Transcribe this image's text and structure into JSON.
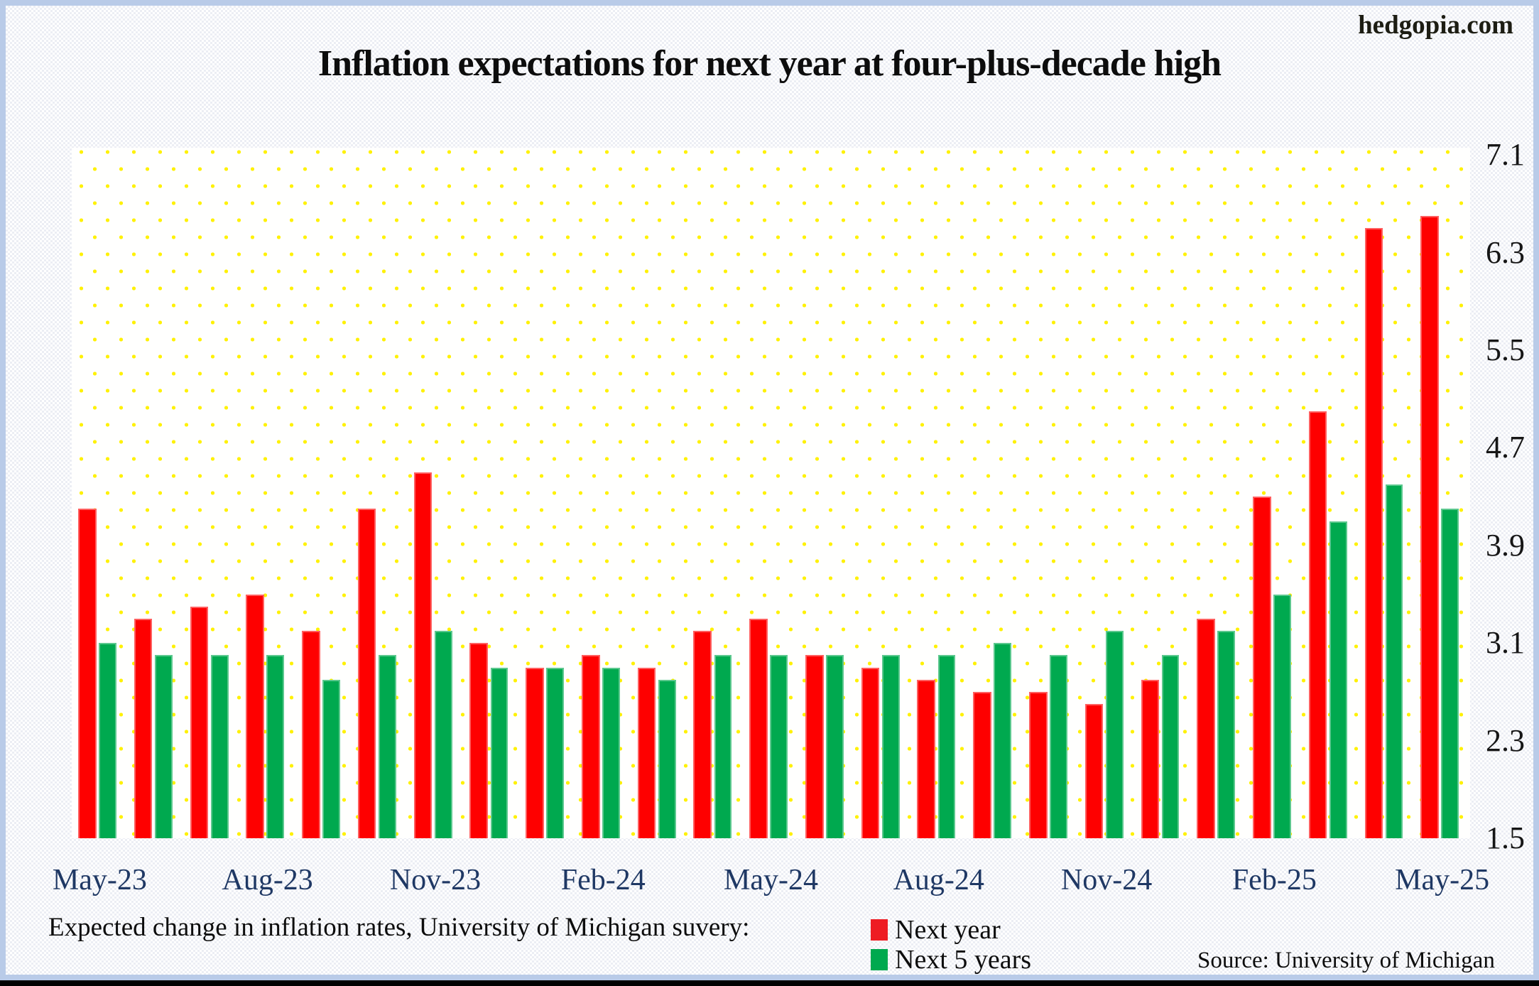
{
  "watermark": "hedgopia.com",
  "footer_note": "Expected change in inflation rates, University of Michigan suvery:",
  "source_note": "Source: University of Michigan",
  "colors": {
    "next_year": "#fe0000",
    "next_5_years": "#00a94f",
    "x_label": "#1f3864",
    "dot_grid": "#fff100",
    "frame": "#b9cbe8"
  },
  "chart_data": {
    "type": "bar",
    "title": "Inflation expectations for next year at four-plus-decade high",
    "categories": [
      "May-23",
      "Jun-23",
      "Jul-23",
      "Aug-23",
      "Sep-23",
      "Oct-23",
      "Nov-23",
      "Dec-23",
      "Jan-24",
      "Feb-24",
      "Mar-24",
      "Apr-24",
      "May-24",
      "Jun-24",
      "Jul-24",
      "Aug-24",
      "Sep-24",
      "Oct-24",
      "Nov-24",
      "Dec-24",
      "Jan-25",
      "Feb-25",
      "Mar-25",
      "Apr-25",
      "May-25"
    ],
    "series": [
      {
        "name": "Next year",
        "color": "#fe0000",
        "values": [
          4.2,
          3.3,
          3.4,
          3.5,
          3.2,
          4.2,
          4.5,
          3.1,
          2.9,
          3.0,
          2.9,
          3.2,
          3.3,
          3.0,
          2.9,
          2.8,
          2.7,
          2.7,
          2.6,
          2.8,
          3.3,
          4.3,
          5.0,
          6.5,
          6.6
        ]
      },
      {
        "name": "Next 5 years",
        "color": "#00a94f",
        "values": [
          3.1,
          3.0,
          3.0,
          3.0,
          2.8,
          3.0,
          3.2,
          2.9,
          2.9,
          2.9,
          2.8,
          3.0,
          3.0,
          3.0,
          3.0,
          3.0,
          3.1,
          3.0,
          3.2,
          3.0,
          3.2,
          3.5,
          4.1,
          4.4,
          4.2
        ]
      }
    ],
    "xlabel": "",
    "ylabel": "",
    "y_ticks": [
      7.1,
      6.3,
      5.5,
      4.7,
      3.9,
      3.1,
      2.3,
      1.5
    ],
    "x_tick_labels": [
      "May-23",
      "Aug-23",
      "Nov-23",
      "Feb-24",
      "May-24",
      "Aug-24",
      "Nov-24",
      "Feb-25",
      "May-25"
    ],
    "x_tick_every": 3,
    "ylim": [
      1.5,
      7.16
    ],
    "grid": "yellow-dot-fill",
    "legend_position": "bottom"
  }
}
